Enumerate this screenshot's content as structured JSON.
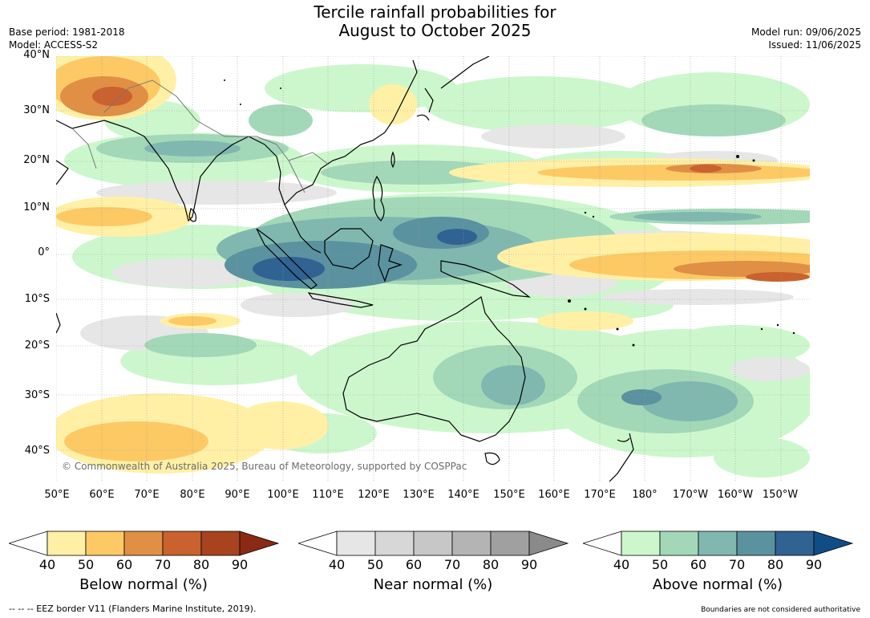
{
  "title_line1": "Tercile rainfall probabilities for",
  "title_line2": "August to October 2025",
  "base_period": "Base period: 1981-2018",
  "model": "Model: ACCESS-S2",
  "model_run": "Model run: 09/06/2025",
  "issued": "Issued: 11/06/2025",
  "copyright": "© Commonwealth of Australia 2025, Bureau of Meteorology, supported by COSPPac",
  "lat_labels": [
    "40°N",
    "30°N",
    "20°N",
    "10°N",
    "0°",
    "10°S",
    "20°S",
    "30°S",
    "40°S"
  ],
  "lon_labels": [
    "50°E",
    "60°E",
    "70°E",
    "80°E",
    "90°E",
    "100°E",
    "110°E",
    "120°E",
    "130°E",
    "140°E",
    "150°E",
    "160°E",
    "170°E",
    "180°",
    "170°W",
    "160°W",
    "150°W"
  ],
  "colorbars": [
    {
      "title": "Below normal (%)",
      "ticks": [
        "40",
        "50",
        "60",
        "70",
        "80",
        "90"
      ],
      "colors": [
        "#ffffff",
        "#fff0a6",
        "#fdc965",
        "#e08f45",
        "#c9622f",
        "#a8431f",
        "#8a2a14"
      ]
    },
    {
      "title": "Near normal (%)",
      "ticks": [
        "40",
        "50",
        "60",
        "70",
        "80",
        "90"
      ],
      "colors": [
        "#ffffff",
        "#e6e6e6",
        "#d7d7d7",
        "#c7c7c7",
        "#b4b4b4",
        "#a0a0a0",
        "#8a8a8a"
      ]
    },
    {
      "title": "Above normal (%)",
      "ticks": [
        "40",
        "50",
        "60",
        "70",
        "80",
        "90"
      ],
      "colors": [
        "#ffffff",
        "#ccf7cc",
        "#a2d8b8",
        "#80b8b0",
        "#5b929f",
        "#306292",
        "#104d86"
      ]
    }
  ],
  "footer_left": "--  --  -- EEZ border V11 (Flanders Marine Institute, 2019).",
  "footer_right": "Boundaries are not considered authoritative"
}
